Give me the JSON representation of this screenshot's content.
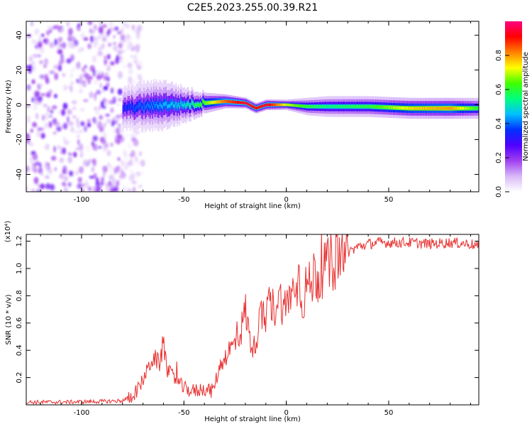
{
  "title": "C2E5.2023.255.00.39.R21",
  "chart_data": [
    {
      "type": "heatmap",
      "title": "C2E5.2023.255.00.39.R21",
      "xlabel": "Height of straight line (km)",
      "ylabel": "Frequency (Hz)",
      "xlim": [
        -127,
        94
      ],
      "ylim": [
        -50,
        48
      ],
      "xticks": [
        -100,
        -50,
        0,
        50
      ],
      "xtick_labels": [
        "-100",
        "-50",
        "0",
        "50"
      ],
      "yticks": [
        40,
        20,
        0,
        -20,
        -40
      ],
      "ytick_labels": [
        "40",
        "20",
        "0",
        "-20",
        "-40"
      ],
      "colorbar": {
        "label": "Normalized spectral amplitude",
        "range": [
          0,
          1
        ],
        "ticks": [
          0.0,
          0.2,
          0.4,
          0.6,
          0.8
        ],
        "tick_labels": [
          "0.0",
          "0.2",
          "0.4",
          "0.6",
          "0.8"
        ],
        "colormap": [
          "#ffffff",
          "#d8b8f8",
          "#a040f0",
          "#5000ff",
          "#0030ff",
          "#00c0ff",
          "#00ff80",
          "#40ff00",
          "#ffff00",
          "#ff8000",
          "#ff0000",
          "#ff0080"
        ]
      },
      "noise_region": {
        "x_range": [
          -127,
          -80
        ],
        "freq_range": [
          -50,
          48
        ],
        "amplitude": 0.15
      },
      "signal_band": [
        {
          "x": -80,
          "freq": -2,
          "width": 12,
          "amplitude": 0.35
        },
        {
          "x": -70,
          "freq": -1,
          "width": 14,
          "amplitude": 0.4
        },
        {
          "x": -60,
          "freq": 0,
          "width": 14,
          "amplitude": 0.45
        },
        {
          "x": -50,
          "freq": 0,
          "width": 10,
          "amplitude": 0.5
        },
        {
          "x": -40,
          "freq": 1,
          "width": 6,
          "amplitude": 0.65
        },
        {
          "x": -30,
          "freq": 2,
          "width": 4,
          "amplitude": 0.85
        },
        {
          "x": -20,
          "freq": 1,
          "width": 3,
          "amplitude": 0.95
        },
        {
          "x": -15,
          "freq": -2,
          "width": 3,
          "amplitude": 0.9
        },
        {
          "x": -10,
          "freq": 0,
          "width": 3,
          "amplitude": 0.95
        },
        {
          "x": 0,
          "freq": 0,
          "width": 3,
          "amplitude": 0.7
        },
        {
          "x": 10,
          "freq": -1,
          "width": 5,
          "amplitude": 0.6
        },
        {
          "x": 20,
          "freq": -1,
          "width": 6,
          "amplitude": 0.55
        },
        {
          "x": 40,
          "freq": -1,
          "width": 6,
          "amplitude": 0.6
        },
        {
          "x": 60,
          "freq": -2,
          "width": 6,
          "amplitude": 0.75
        },
        {
          "x": 80,
          "freq": -2,
          "width": 6,
          "amplitude": 0.8
        },
        {
          "x": 94,
          "freq": -2,
          "width": 6,
          "amplitude": 0.6
        }
      ]
    },
    {
      "type": "line",
      "title": "",
      "xlabel": "Height of straight line (km)",
      "ylabel": "SNR (10 * v/v)",
      "y_multiplier_label": "(x10⁴)",
      "xlim": [
        -127,
        94
      ],
      "ylim": [
        0,
        1.25
      ],
      "xticks": [
        -100,
        -50,
        0,
        50
      ],
      "xtick_labels": [
        "-100",
        "-50",
        "0",
        "50"
      ],
      "yticks": [
        0.2,
        0.4,
        0.6,
        0.8,
        1.0,
        1.2
      ],
      "ytick_labels": [
        "0.2",
        "0.4",
        "0.6",
        "0.8",
        "1.0",
        "1.2"
      ],
      "color": "#e83030",
      "series": [
        {
          "name": "SNR",
          "x": [
            -127,
            -110,
            -90,
            -80,
            -76,
            -72,
            -68,
            -65,
            -62,
            -60,
            -58,
            -55,
            -52,
            -50,
            -45,
            -40,
            -36,
            -34,
            -32,
            -30,
            -28,
            -25,
            -22,
            -20,
            -18,
            -16,
            -14,
            -12,
            -10,
            -8,
            -6,
            -4,
            -2,
            0,
            2,
            4,
            6,
            8,
            10,
            12,
            14,
            16,
            18,
            20,
            22,
            25,
            28,
            30,
            35,
            40,
            45,
            50,
            60,
            70,
            80,
            90,
            94
          ],
          "y": [
            0.02,
            0.02,
            0.025,
            0.03,
            0.06,
            0.12,
            0.25,
            0.35,
            0.3,
            0.45,
            0.25,
            0.2,
            0.15,
            0.12,
            0.1,
            0.12,
            0.1,
            0.2,
            0.3,
            0.35,
            0.4,
            0.45,
            0.55,
            0.7,
            0.5,
            0.4,
            0.55,
            0.65,
            0.6,
            0.75,
            0.7,
            0.8,
            0.75,
            0.7,
            0.85,
            0.8,
            0.95,
            0.75,
            0.9,
            0.85,
            1.0,
            0.9,
            1.02,
            1.0,
            1.05,
            1.08,
            1.1,
            1.12,
            1.16,
            1.18,
            1.19,
            1.19,
            1.19,
            1.18,
            1.19,
            1.18,
            1.16
          ]
        }
      ]
    }
  ]
}
